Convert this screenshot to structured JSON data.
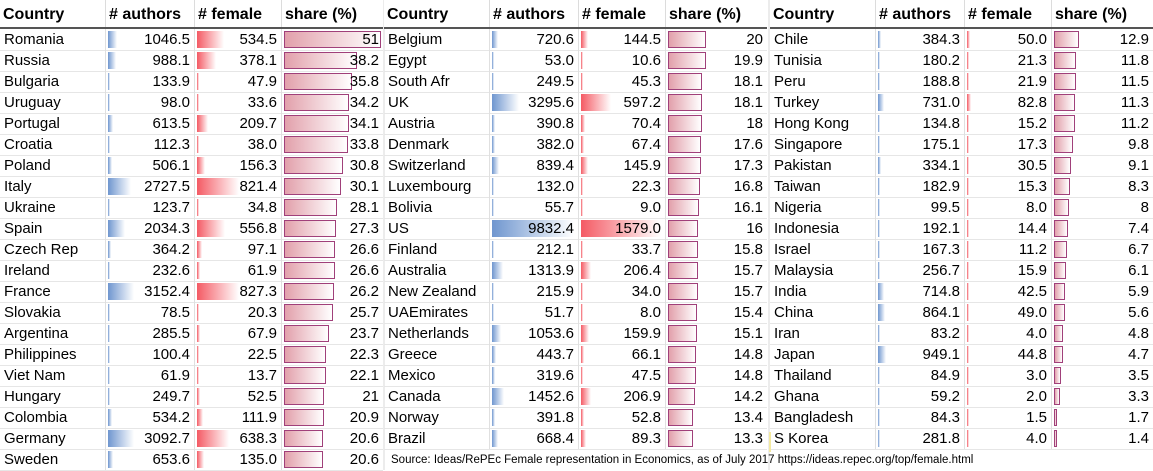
{
  "headers": {
    "country": "Country",
    "authors": "# authors",
    "female": "# female",
    "share": "share (%)"
  },
  "colors": {
    "authors_bar": "#6f96cf",
    "female_bar": "#f45a64",
    "share_bar": "#e2a0ab",
    "share_border": "#a0407a",
    "header_rule": "#555555"
  },
  "panels": [
    {
      "rows": [
        {
          "country": "Romania",
          "authors": "1046.5",
          "female": "534.5",
          "share": "51"
        },
        {
          "country": "Russia",
          "authors": "988.1",
          "female": "378.1",
          "share": "38.2"
        },
        {
          "country": "Bulgaria",
          "authors": "133.9",
          "female": "47.9",
          "share": "35.8"
        },
        {
          "country": "Uruguay",
          "authors": "98.0",
          "female": "33.6",
          "share": "34.2"
        },
        {
          "country": "Portugal",
          "authors": "613.5",
          "female": "209.7",
          "share": "34.1"
        },
        {
          "country": "Croatia",
          "authors": "112.3",
          "female": "38.0",
          "share": "33.8"
        },
        {
          "country": "Poland",
          "authors": "506.1",
          "female": "156.3",
          "share": "30.8"
        },
        {
          "country": "Italy",
          "authors": "2727.5",
          "female": "821.4",
          "share": "30.1"
        },
        {
          "country": "Ukraine",
          "authors": "123.7",
          "female": "34.8",
          "share": "28.1"
        },
        {
          "country": "Spain",
          "authors": "2034.3",
          "female": "556.8",
          "share": "27.3"
        },
        {
          "country": "Czech Rep",
          "authors": "364.2",
          "female": "97.1",
          "share": "26.6"
        },
        {
          "country": "Ireland",
          "authors": "232.6",
          "female": "61.9",
          "share": "26.6"
        },
        {
          "country": "France",
          "authors": "3152.4",
          "female": "827.3",
          "share": "26.2"
        },
        {
          "country": "Slovakia",
          "authors": "78.5",
          "female": "20.3",
          "share": "25.7"
        },
        {
          "country": "Argentina",
          "authors": "285.5",
          "female": "67.9",
          "share": "23.7"
        },
        {
          "country": "Philippines",
          "authors": "100.4",
          "female": "22.5",
          "share": "22.3"
        },
        {
          "country": "Viet Nam",
          "authors": "61.9",
          "female": "13.7",
          "share": "22.1"
        },
        {
          "country": "Hungary",
          "authors": "249.7",
          "female": "52.5",
          "share": "21"
        },
        {
          "country": "Colombia",
          "authors": "534.2",
          "female": "111.9",
          "share": "20.9"
        },
        {
          "country": "Germany",
          "authors": "3092.7",
          "female": "638.3",
          "share": "20.6"
        },
        {
          "country": "Sweden",
          "authors": "653.6",
          "female": "135.0",
          "share": "20.6"
        }
      ]
    },
    {
      "rows": [
        {
          "country": "Belgium",
          "authors": "720.6",
          "female": "144.5",
          "share": "20"
        },
        {
          "country": "Egypt",
          "authors": "53.0",
          "female": "10.6",
          "share": "19.9"
        },
        {
          "country": "South Afr",
          "authors": "249.5",
          "female": "45.3",
          "share": "18.1"
        },
        {
          "country": "UK",
          "authors": "3295.6",
          "female": "597.2",
          "share": "18.1"
        },
        {
          "country": "Austria",
          "authors": "390.8",
          "female": "70.4",
          "share": "18"
        },
        {
          "country": "Denmark",
          "authors": "382.0",
          "female": "67.4",
          "share": "17.6"
        },
        {
          "country": "Switzerland",
          "authors": "839.4",
          "female": "145.9",
          "share": "17.3"
        },
        {
          "country": "Luxembourg",
          "authors": "132.0",
          "female": "22.3",
          "share": "16.8"
        },
        {
          "country": "Bolivia",
          "authors": "55.7",
          "female": "9.0",
          "share": "16.1"
        },
        {
          "country": "US",
          "authors": "9832.4",
          "female": "1579.0",
          "share": "16"
        },
        {
          "country": "Finland",
          "authors": "212.1",
          "female": "33.7",
          "share": "15.8"
        },
        {
          "country": "Australia",
          "authors": "1313.9",
          "female": "206.4",
          "share": "15.7"
        },
        {
          "country": "New Zealand",
          "authors": "215.9",
          "female": "34.0",
          "share": "15.7"
        },
        {
          "country": "UAEmirates",
          "authors": "51.7",
          "female": "8.0",
          "share": "15.4"
        },
        {
          "country": "Netherlands",
          "authors": "1053.6",
          "female": "159.9",
          "share": "15.1"
        },
        {
          "country": "Greece",
          "authors": "443.7",
          "female": "66.1",
          "share": "14.8"
        },
        {
          "country": "Mexico",
          "authors": "319.6",
          "female": "47.5",
          "share": "14.8"
        },
        {
          "country": "Canada",
          "authors": "1452.6",
          "female": "206.9",
          "share": "14.2"
        },
        {
          "country": "Norway",
          "authors": "391.8",
          "female": "52.8",
          "share": "13.4"
        },
        {
          "country": "Brazil",
          "authors": "668.4",
          "female": "89.3",
          "share": "13.3"
        }
      ]
    },
    {
      "rows": [
        {
          "country": "Chile",
          "authors": "384.3",
          "female": "50.0",
          "share": "12.9"
        },
        {
          "country": "Tunisia",
          "authors": "180.2",
          "female": "21.3",
          "share": "11.8"
        },
        {
          "country": "Peru",
          "authors": "188.8",
          "female": "21.9",
          "share": "11.5"
        },
        {
          "country": "Turkey",
          "authors": "731.0",
          "female": "82.8",
          "share": "11.3"
        },
        {
          "country": "Hong Kong",
          "authors": "134.8",
          "female": "15.2",
          "share": "11.2"
        },
        {
          "country": "Singapore",
          "authors": "175.1",
          "female": "17.3",
          "share": "9.8"
        },
        {
          "country": "Pakistan",
          "authors": "334.1",
          "female": "30.5",
          "share": "9.1"
        },
        {
          "country": "Taiwan",
          "authors": "182.9",
          "female": "15.3",
          "share": "8.3"
        },
        {
          "country": "Nigeria",
          "authors": "99.5",
          "female": "8.0",
          "share": "8"
        },
        {
          "country": "Indonesia",
          "authors": "192.1",
          "female": "14.4",
          "share": "7.4"
        },
        {
          "country": "Israel",
          "authors": "167.3",
          "female": "11.2",
          "share": "6.7"
        },
        {
          "country": "Malaysia",
          "authors": "256.7",
          "female": "15.9",
          "share": "6.1"
        },
        {
          "country": "India",
          "authors": "714.8",
          "female": "42.5",
          "share": "5.9"
        },
        {
          "country": "China",
          "authors": "864.1",
          "female": "49.0",
          "share": "5.6"
        },
        {
          "country": "Iran",
          "authors": "83.2",
          "female": "4.0",
          "share": "4.8"
        },
        {
          "country": "Japan",
          "authors": "949.1",
          "female": "44.8",
          "share": "4.7"
        },
        {
          "country": "Thailand",
          "authors": "84.9",
          "female": "3.0",
          "share": "3.5"
        },
        {
          "country": "Ghana",
          "authors": "59.2",
          "female": "2.0",
          "share": "3.3"
        },
        {
          "country": "Bangladesh",
          "authors": "84.3",
          "female": "1.5",
          "share": "1.7"
        },
        {
          "country": "S Korea",
          "authors": "281.8",
          "female": "4.0",
          "share": "1.4"
        }
      ]
    }
  ],
  "source": "Source: Ideas/RePEc Female representation in Economics, as of July 2017 https://ideas.repec.org/top/female.html"
}
